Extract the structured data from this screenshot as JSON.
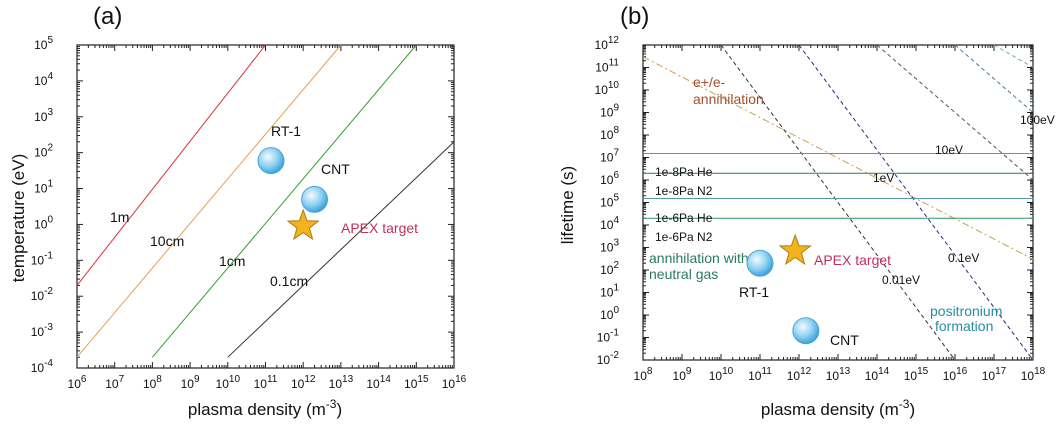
{
  "chart_data": [
    {
      "type": "line",
      "panel": "(a)",
      "xlabel_main": "plasma density (m",
      "xlabel_unit_sup": "-3",
      "xlabel_close": ")",
      "ylabel": "temperature (eV)",
      "xscale": "log",
      "yscale": "log",
      "xlim": [
        1000000.0,
        1e+16
      ],
      "ylim": [
        0.0001,
        100000.0
      ],
      "x_tick_exponents": [
        "6",
        "7",
        "8",
        "9",
        "10",
        "11",
        "12",
        "13",
        "14",
        "15",
        "16"
      ],
      "y_tick_exponents": [
        "-4",
        "-3",
        "-2",
        "-1",
        "0",
        "1",
        "2",
        "3",
        "4",
        "5"
      ],
      "grid": false,
      "series": [
        {
          "name": "1m",
          "color": "#d9303a",
          "x": [
            1000000.0,
            100000000000.0
          ],
          "y": [
            0.02,
            100000.0
          ]
        },
        {
          "name": "10cm",
          "color": "#e6a050",
          "x": [
            1000000.0,
            10000000000000.0
          ],
          "y": [
            0.0002,
            100000.0
          ]
        },
        {
          "name": "1cm",
          "color": "#2fa02f",
          "x": [
            100000000.0,
            1000000000000000.0
          ],
          "y": [
            0.0002,
            100000.0
          ]
        },
        {
          "name": "0.1cm",
          "color": "#333333",
          "x": [
            10000000000.0,
            1e+16
          ],
          "y": [
            0.0002,
            200
          ]
        }
      ],
      "points": [
        {
          "label": "RT-1",
          "x": 140000000000.0,
          "y": 60,
          "marker": "circle",
          "label_color": "#2a2a7a"
        },
        {
          "label": "CNT",
          "x": 2000000000000.0,
          "y": 5,
          "marker": "circle",
          "label_color": "#2a2a7a"
        },
        {
          "label": "APEX target",
          "x": 1000000000000.0,
          "y": 0.9,
          "marker": "star",
          "label_color": "#c0305a"
        }
      ]
    },
    {
      "type": "line",
      "panel": "(b)",
      "xlabel_main": "plasma density (m",
      "xlabel_unit_sup": "-3",
      "xlabel_close": ")",
      "ylabel": "lifetime (s)",
      "xscale": "log",
      "yscale": "log",
      "xlim": [
        100000000.0,
        1e+18
      ],
      "ylim": [
        0.01,
        1000000000000.0
      ],
      "x_tick_exponents": [
        "8",
        "9",
        "10",
        "11",
        "12",
        "13",
        "14",
        "15",
        "16",
        "17",
        "18"
      ],
      "y_tick_exponents": [
        "-2",
        "-1",
        "0",
        "1",
        "2",
        "3",
        "4",
        "5",
        "6",
        "7",
        "8",
        "9",
        "10",
        "11",
        "12"
      ],
      "grid": false,
      "series": [
        {
          "name": "e+/e- annihilation",
          "color": "#c8a050",
          "style": "dashdot",
          "x": [
            100000000.0,
            1e+18
          ],
          "y": [
            300000000000.0,
            300
          ]
        },
        {
          "name": "0.01eV",
          "color": "#333333",
          "style": "dashed",
          "x": [
            10000000000.0,
            1e+16
          ],
          "y": [
            1000000000000.0,
            0.01
          ]
        },
        {
          "name": "0.1eV",
          "color": "#2a2a7a",
          "style": "dashed",
          "x": [
            1000000000000.0,
            1e+18
          ],
          "y": [
            1000000000000.0,
            0.01
          ]
        },
        {
          "name": "1eV",
          "color": "#555555",
          "style": "dashed",
          "x": [
            100000000000000.0,
            1e+18
          ],
          "y": [
            1000000000000.0,
            1000000.0
          ]
        },
        {
          "name": "10eV",
          "color": "#4a7aa0",
          "style": "dashed",
          "x": [
            1e+16,
            1e+18
          ],
          "y": [
            1000000000000.0,
            1000000000.0
          ]
        },
        {
          "name": "100eV",
          "color": "#6ab0a0",
          "style": "dashed",
          "x": [
            1e+17,
            1e+18
          ],
          "y": [
            1000000000000.0,
            100000000000.0
          ]
        },
        {
          "name": "1e-8Pa He",
          "color": "#5a9aa8",
          "x": [
            100000000.0,
            1e+18
          ],
          "y": [
            15000000.0,
            15000000.0
          ]
        },
        {
          "name": "1e-8Pa N2",
          "color": "#2a7a60",
          "x": [
            100000000.0,
            1e+18
          ],
          "y": [
            2000000.0,
            2000000.0
          ]
        },
        {
          "name": "1e-6Pa He",
          "color": "#5a9aa8",
          "x": [
            100000000.0,
            1e+18
          ],
          "y": [
            150000.0,
            150000.0
          ]
        },
        {
          "name": "1e-6Pa N2",
          "color": "#2a9a60",
          "x": [
            100000000.0,
            1e+18
          ],
          "y": [
            20000.0,
            20000.0
          ]
        }
      ],
      "points": [
        {
          "label": "RT-1",
          "x": 100000000000.0,
          "y": 200,
          "marker": "circle",
          "label_color": "#2a2a7a"
        },
        {
          "label": "CNT",
          "x": 1500000000000.0,
          "y": 0.2,
          "marker": "circle",
          "label_color": "#2a2a7a"
        },
        {
          "label": "APEX target",
          "x": 800000000000.0,
          "y": 700,
          "marker": "star",
          "label_color": "#c0305a"
        }
      ],
      "annotations": [
        {
          "text": "e+/e-",
          "color": "#a0522d"
        },
        {
          "text": "annihilation",
          "color": "#a0522d"
        },
        {
          "text": "annihilation with",
          "color": "#2a7a60"
        },
        {
          "text": "neutral gas",
          "color": "#2a7a60"
        },
        {
          "text": "positronium",
          "color": "#2a8aa8"
        },
        {
          "text": "formation",
          "color": "#2a8aa8"
        }
      ]
    }
  ]
}
